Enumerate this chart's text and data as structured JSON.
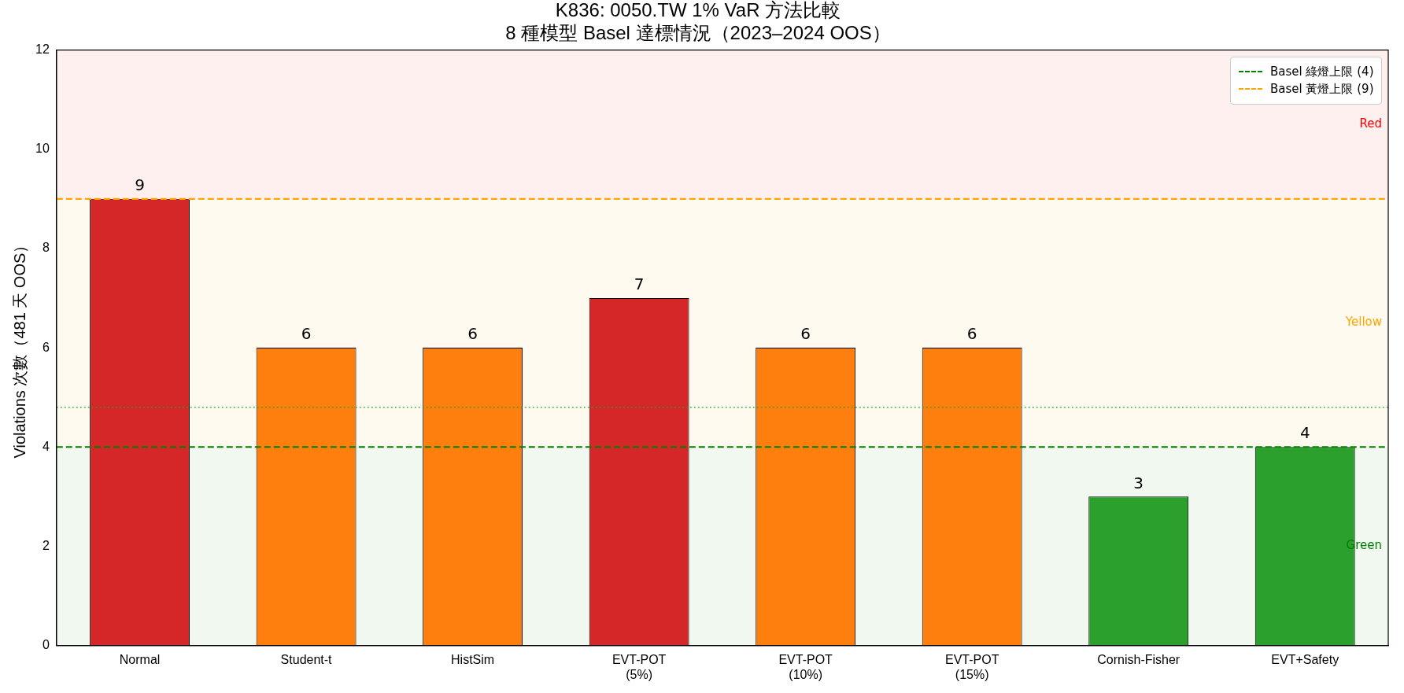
{
  "chart_data": {
    "type": "bar",
    "title": "K836: 0050.TW 1% VaR 方法比較\n8 種模型 Basel 達標情況（2023–2024 OOS）",
    "ylabel": "Violations 次數（481 天 OOS）",
    "categories": [
      "Normal",
      "Student-t",
      "HistSim",
      "EVT-POT\n(5%)",
      "EVT-POT\n(10%)",
      "EVT-POT\n(15%)",
      "Cornish-Fisher",
      "EVT+Safety"
    ],
    "values": [
      9,
      6,
      6,
      7,
      6,
      6,
      3,
      4
    ],
    "colors": [
      "#d62728",
      "#ff7f0e",
      "#ff7f0e",
      "#d62728",
      "#ff7f0e",
      "#ff7f0e",
      "#2ca02c",
      "#2ca02c"
    ],
    "data_labels": true,
    "ylim": [
      0,
      12
    ],
    "yticks": [
      0,
      2,
      4,
      6,
      8,
      10,
      12
    ],
    "grid": false,
    "legend": "top right",
    "ref_lines": [
      {
        "axis": "y",
        "value": 4,
        "label": "Basel 綠燈上限 (4)",
        "color": "#008000",
        "line_style": "dashed"
      },
      {
        "axis": "y",
        "value": 9,
        "label": "Basel 黃燈上限 (9)",
        "color": "#ffa500",
        "line_style": "dashed"
      },
      {
        "axis": "y",
        "value": 4.8,
        "color": "#2ca02c",
        "line_style": "dotted"
      }
    ],
    "bands": [
      {
        "axis": "y",
        "from": 0,
        "to": 4,
        "label": "Green",
        "color": "#008000"
      },
      {
        "axis": "y",
        "from": 4,
        "to": 9,
        "label": "Yellow",
        "color": "#ffa500"
      },
      {
        "axis": "y",
        "from": 9,
        "to": 12,
        "label": "Red",
        "color": "#ff0000"
      }
    ]
  }
}
